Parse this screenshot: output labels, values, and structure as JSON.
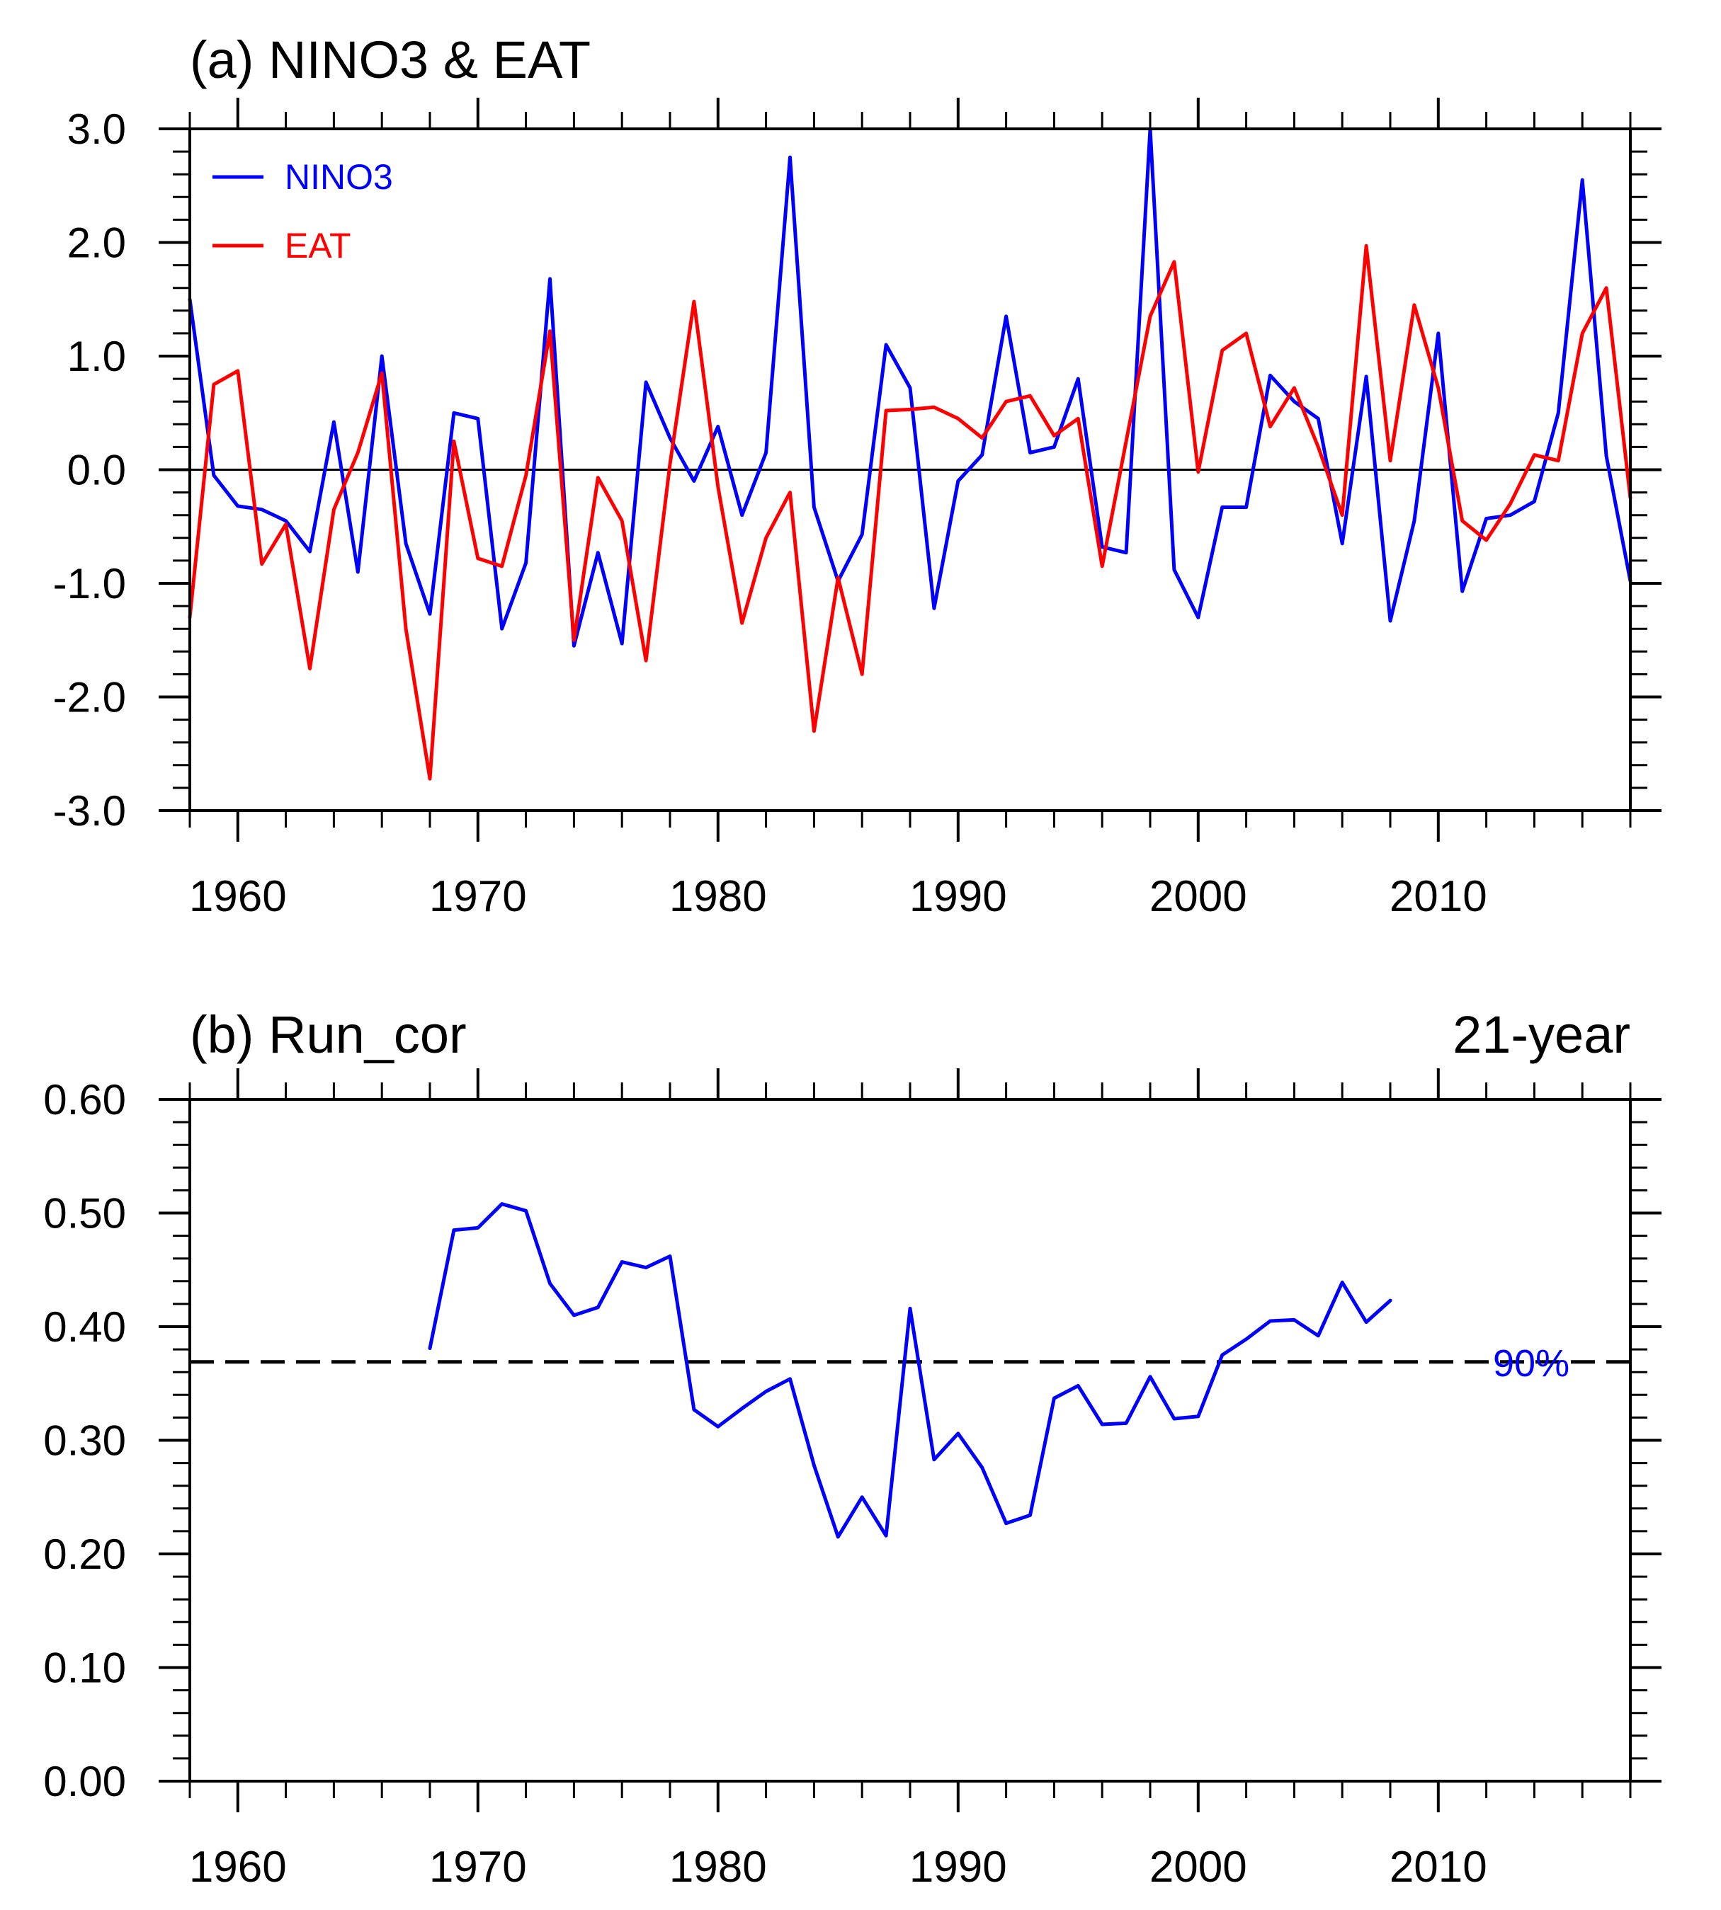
{
  "chart_data": [
    {
      "type": "line",
      "panel": "a",
      "title": "(a) NINO3 & EAT",
      "right_title": "",
      "xlabel": "",
      "ylabel": "",
      "xlim": [
        1958,
        2018
      ],
      "ylim": [
        -3.0,
        3.0
      ],
      "xticks": [
        1960,
        1970,
        1980,
        1990,
        2000,
        2010
      ],
      "xtick_labels": [
        "1960",
        "1970",
        "1980",
        "1990",
        "2000",
        "2010"
      ],
      "yticks": [
        -3.0,
        -2.0,
        -1.0,
        0.0,
        1.0,
        2.0,
        3.0
      ],
      "ytick_labels": [
        "-3.0",
        "-2.0",
        "-1.0",
        "0.0",
        "1.0",
        "2.0",
        "3.0"
      ],
      "reference_line": 0.0,
      "legend": "top-left",
      "x": [
        1958,
        1959,
        1960,
        1961,
        1962,
        1963,
        1964,
        1965,
        1966,
        1967,
        1968,
        1969,
        1970,
        1971,
        1972,
        1973,
        1974,
        1975,
        1976,
        1977,
        1978,
        1979,
        1980,
        1981,
        1982,
        1983,
        1984,
        1985,
        1986,
        1987,
        1988,
        1989,
        1990,
        1991,
        1992,
        1993,
        1994,
        1995,
        1996,
        1997,
        1998,
        1999,
        2000,
        2001,
        2002,
        2003,
        2004,
        2005,
        2006,
        2007,
        2008,
        2009,
        2010,
        2011,
        2012,
        2013,
        2014,
        2015,
        2016,
        2017,
        2018
      ],
      "series": [
        {
          "name": "NINO3",
          "color": "#0000ff",
          "values": [
            1.5,
            -0.05,
            -0.32,
            -0.35,
            -0.45,
            -0.72,
            0.42,
            -0.9,
            1.0,
            -0.65,
            -1.27,
            0.5,
            0.45,
            -1.4,
            -0.82,
            1.68,
            -1.55,
            -0.73,
            -1.53,
            0.77,
            0.28,
            -0.1,
            0.38,
            -0.4,
            0.15,
            2.75,
            -0.33,
            -0.98,
            -0.57,
            1.1,
            0.72,
            -1.22,
            -0.1,
            0.13,
            1.35,
            0.15,
            0.2,
            0.8,
            -0.68,
            -0.73,
            3.0,
            -0.88,
            -1.3,
            -0.33,
            -0.33,
            0.83,
            0.6,
            0.45,
            -0.65,
            0.82,
            -1.33,
            -0.45,
            1.2,
            -1.07,
            -0.43,
            -0.4,
            -0.28,
            0.5,
            2.55,
            0.12,
            -0.98
          ]
        },
        {
          "name": "EAT",
          "color": "#ff0000",
          "values": [
            -1.3,
            0.75,
            0.87,
            -0.83,
            -0.48,
            -1.75,
            -0.35,
            0.15,
            0.85,
            -1.4,
            -2.72,
            0.25,
            -0.78,
            -0.85,
            -0.05,
            1.22,
            -1.5,
            -0.07,
            -0.45,
            -1.68,
            0.05,
            1.48,
            -0.15,
            -1.35,
            -0.6,
            -0.2,
            -2.3,
            -0.95,
            -1.8,
            0.52,
            0.53,
            0.55,
            0.45,
            0.28,
            0.6,
            0.65,
            0.3,
            0.45,
            -0.85,
            0.25,
            1.35,
            1.83,
            -0.02,
            1.05,
            1.2,
            0.38,
            0.72,
            0.2,
            -0.4,
            1.97,
            0.08,
            1.45,
            0.72,
            -0.45,
            -0.62,
            -0.3,
            0.13,
            0.08,
            1.2,
            1.6,
            -0.25
          ]
        }
      ]
    },
    {
      "type": "line",
      "panel": "b",
      "title": "(b) Run_cor",
      "right_title": "21-year",
      "xlabel": "",
      "ylabel": "",
      "xlim": [
        1958,
        2018
      ],
      "ylim": [
        0.0,
        0.6
      ],
      "xticks": [
        1960,
        1970,
        1980,
        1990,
        2000,
        2010
      ],
      "xtick_labels": [
        "1960",
        "1970",
        "1980",
        "1990",
        "2000",
        "2010"
      ],
      "yticks": [
        0.0,
        0.1,
        0.2,
        0.3,
        0.4,
        0.5,
        0.6
      ],
      "ytick_labels": [
        "0.00",
        "0.10",
        "0.20",
        "0.30",
        "0.40",
        "0.50",
        "0.60"
      ],
      "significance_line": {
        "value": 0.369,
        "label": "90%",
        "color": "#0000ff",
        "style": "dashed"
      },
      "x": [
        1968,
        1969,
        1970,
        1971,
        1972,
        1973,
        1974,
        1975,
        1976,
        1977,
        1978,
        1979,
        1980,
        1981,
        1982,
        1983,
        1984,
        1985,
        1986,
        1987,
        1988,
        1989,
        1990,
        1991,
        1992,
        1993,
        1994,
        1995,
        1996,
        1997,
        1998,
        1999,
        2000,
        2001,
        2002,
        2003,
        2004,
        2005,
        2006,
        2007,
        2008
      ],
      "series": [
        {
          "name": "Run_cor",
          "color": "#0000ff",
          "values": [
            0.381,
            0.485,
            0.487,
            0.508,
            0.502,
            0.438,
            0.41,
            0.417,
            0.457,
            0.452,
            0.462,
            0.327,
            0.312,
            0.328,
            0.343,
            0.354,
            0.278,
            0.215,
            0.25,
            0.216,
            0.416,
            0.283,
            0.306,
            0.276,
            0.227,
            0.234,
            0.337,
            0.348,
            0.314,
            0.315,
            0.356,
            0.319,
            0.321,
            0.375,
            0.389,
            0.405,
            0.406,
            0.392,
            0.439,
            0.404,
            0.423
          ]
        }
      ]
    }
  ]
}
